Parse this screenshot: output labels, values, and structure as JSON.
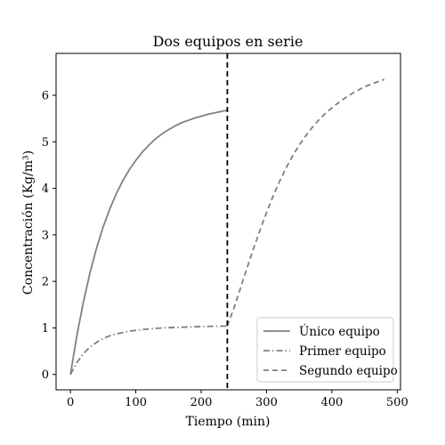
{
  "chart_data": {
    "type": "line",
    "title": "Dos equipos en serie",
    "xlabel": "Tiempo (min)",
    "ylabel": "Concentración (Kg/m³)",
    "xlim": [
      -22,
      505
    ],
    "ylim": [
      -0.33,
      6.9
    ],
    "xticks": [
      0,
      100,
      200,
      300,
      400,
      500
    ],
    "yticks": [
      0,
      1,
      2,
      3,
      4,
      5,
      6
    ],
    "grid": false,
    "legend_position": "lower right",
    "vline": {
      "x": 240,
      "style": "dashed",
      "color": "#000000"
    },
    "series": [
      {
        "name": "Único equipo",
        "style": "solid",
        "color": "#808080",
        "x": [
          0,
          10,
          20,
          30,
          40,
          50,
          60,
          70,
          80,
          90,
          100,
          110,
          120,
          130,
          140,
          150,
          160,
          170,
          180,
          190,
          200,
          210,
          220,
          230,
          240
        ],
        "y": [
          0,
          0.85,
          1.57,
          2.19,
          2.72,
          3.17,
          3.55,
          3.88,
          4.16,
          4.4,
          4.6,
          4.78,
          4.93,
          5.06,
          5.17,
          5.26,
          5.34,
          5.41,
          5.46,
          5.51,
          5.55,
          5.59,
          5.62,
          5.65,
          5.68
        ]
      },
      {
        "name": "Primer equipo",
        "style": "dashdot",
        "color": "#808080",
        "x": [
          0,
          10,
          20,
          30,
          40,
          50,
          60,
          70,
          80,
          90,
          100,
          120,
          140,
          160,
          180,
          200,
          220,
          240
        ],
        "y": [
          0,
          0.26,
          0.45,
          0.59,
          0.69,
          0.77,
          0.83,
          0.87,
          0.9,
          0.93,
          0.95,
          0.98,
          1.0,
          1.01,
          1.02,
          1.03,
          1.035,
          1.04
        ]
      },
      {
        "name": "Segundo equipo",
        "style": "dashed",
        "color": "#808080",
        "x": [
          240,
          250,
          260,
          270,
          280,
          290,
          300,
          310,
          320,
          330,
          340,
          350,
          360,
          370,
          380,
          390,
          400,
          410,
          420,
          430,
          440,
          450,
          460,
          470,
          480
        ],
        "y": [
          1.04,
          1.42,
          1.85,
          2.28,
          2.7,
          3.1,
          3.48,
          3.83,
          4.15,
          4.44,
          4.7,
          4.93,
          5.13,
          5.31,
          5.47,
          5.61,
          5.73,
          5.84,
          5.94,
          6.03,
          6.11,
          6.18,
          6.24,
          6.29,
          6.34
        ]
      }
    ]
  }
}
